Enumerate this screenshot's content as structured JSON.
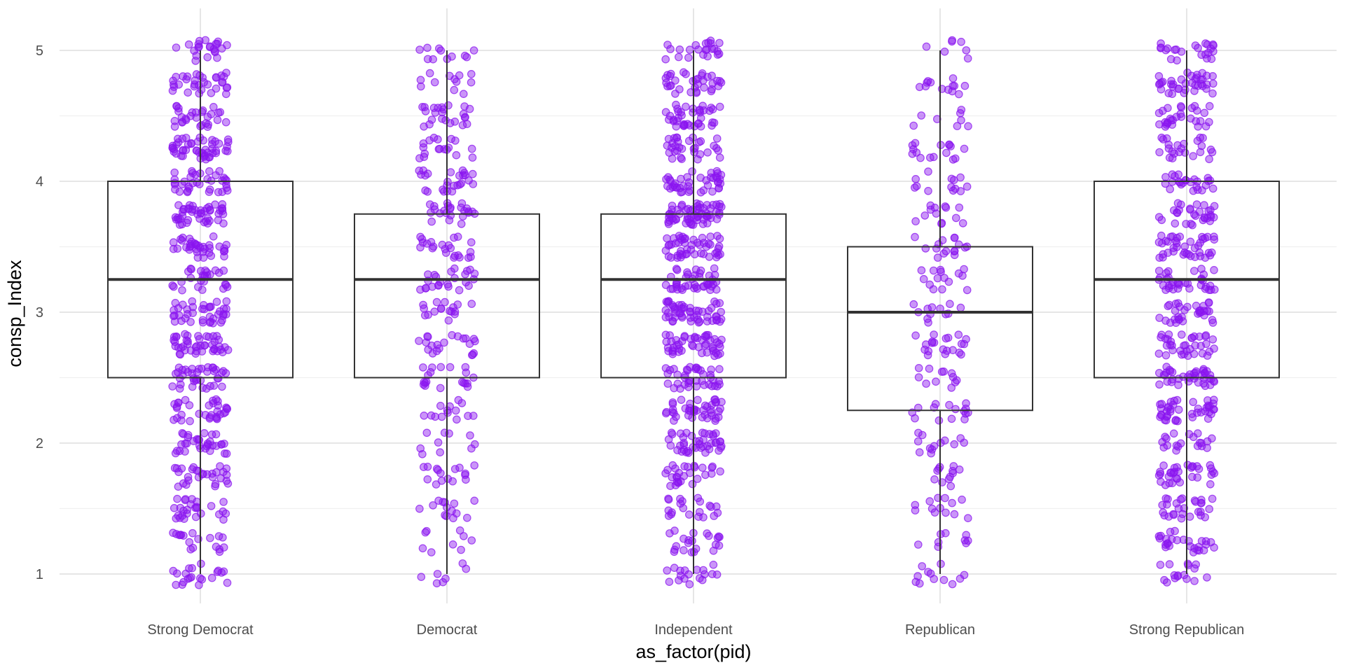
{
  "chart_data": {
    "type": "boxplot",
    "title": "",
    "xlabel": "as_factor(pid)",
    "ylabel": "consp_Index",
    "ylim": [
      0.7,
      5.35
    ],
    "yticks": [
      1,
      2,
      3,
      4,
      5
    ],
    "ytick_labels": [
      "1",
      "2",
      "3",
      "4",
      "5"
    ],
    "grid": true,
    "legend": "none",
    "point_color": "#8a14ef",
    "box_color": "#333333",
    "categories": [
      "Strong Democrat",
      "Democrat",
      "Independent",
      "Republican",
      "Strong Republican"
    ],
    "boxes": [
      {
        "category": "Strong Democrat",
        "min": 1.0,
        "q1": 2.5,
        "median": 3.25,
        "q3": 4.0,
        "max": 5.0,
        "n_points_approx": 560
      },
      {
        "category": "Democrat",
        "min": 1.0,
        "q1": 2.5,
        "median": 3.25,
        "q3": 3.75,
        "max": 5.0,
        "n_points_approx": 290
      },
      {
        "category": "Independent",
        "min": 1.0,
        "q1": 2.5,
        "median": 3.25,
        "q3": 3.75,
        "max": 5.0,
        "n_points_approx": 640
      },
      {
        "category": "Republican",
        "min": 1.0,
        "q1": 2.25,
        "median": 3.0,
        "q3": 3.5,
        "max": 5.0,
        "n_points_approx": 220
      },
      {
        "category": "Strong Republican",
        "min": 1.0,
        "q1": 2.5,
        "median": 3.25,
        "q3": 4.0,
        "max": 5.0,
        "n_points_approx": 520
      }
    ]
  }
}
